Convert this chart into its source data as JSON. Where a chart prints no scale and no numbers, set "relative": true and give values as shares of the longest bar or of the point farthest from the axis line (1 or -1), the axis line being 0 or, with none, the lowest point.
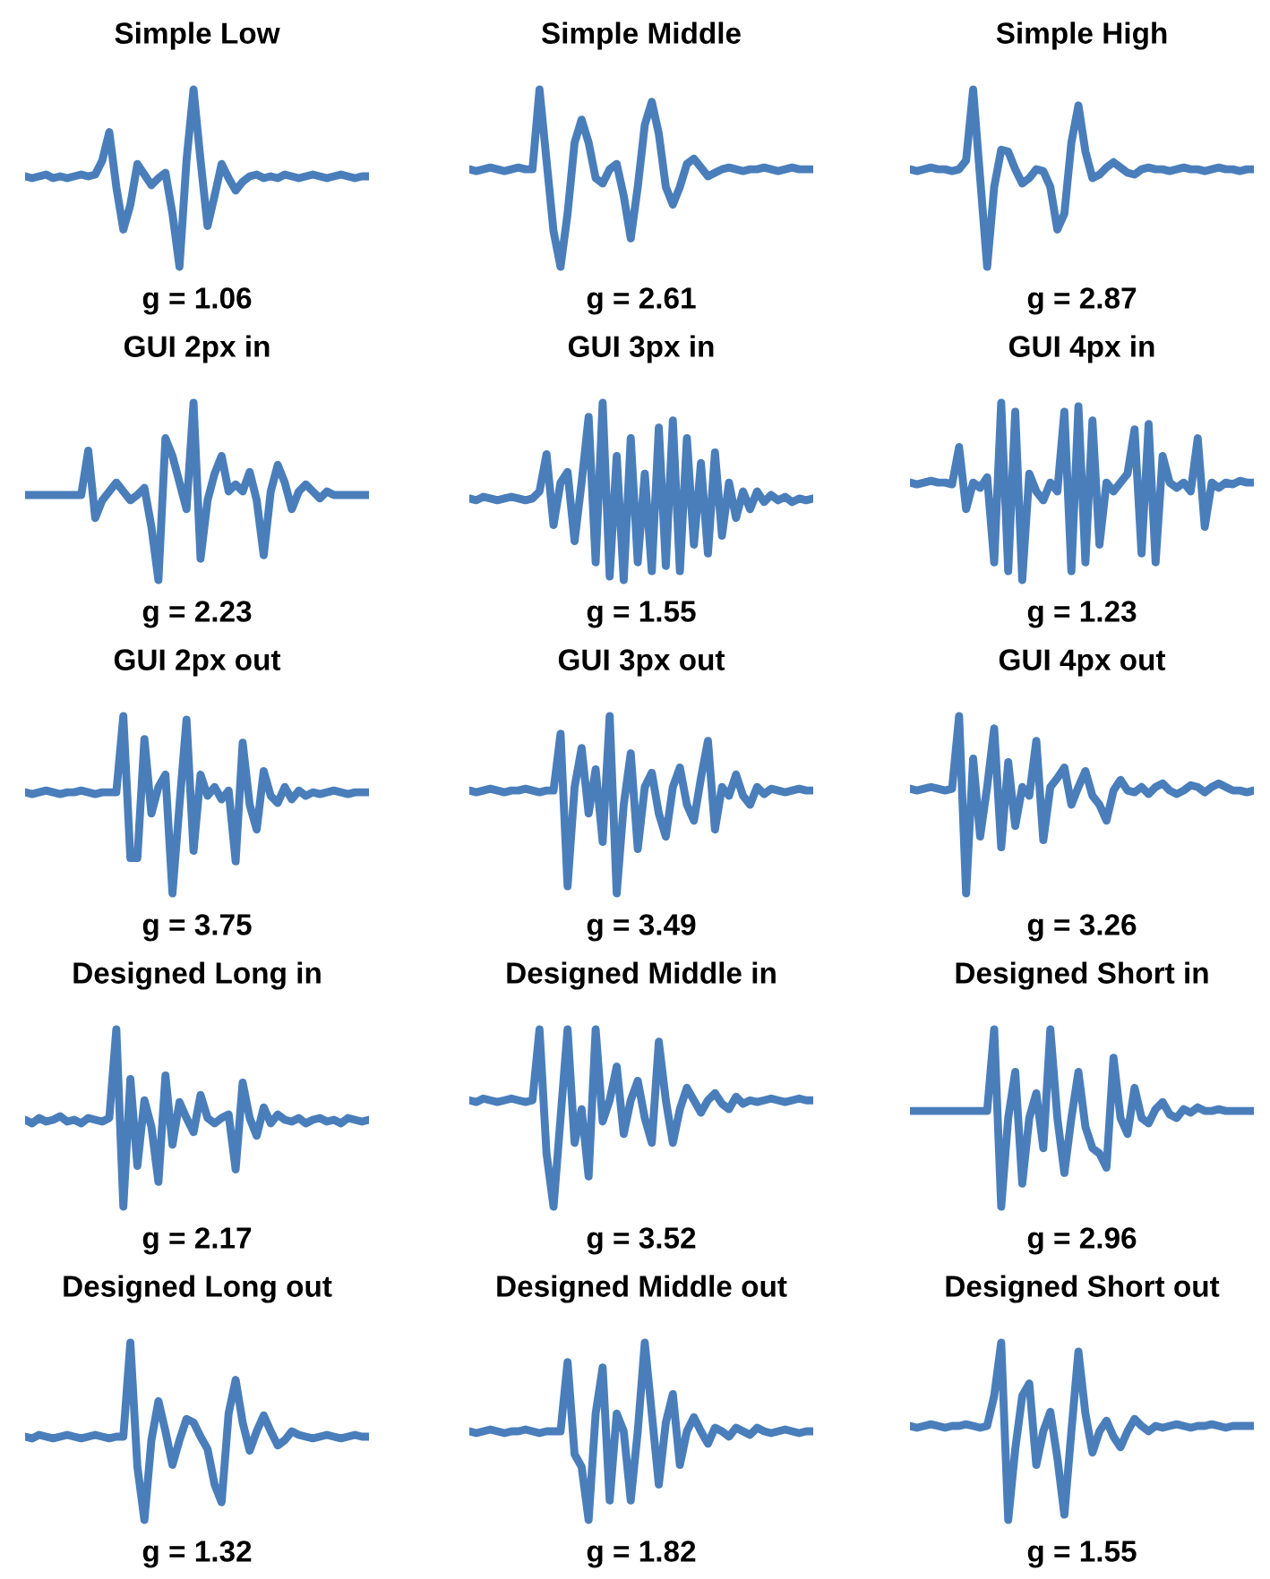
{
  "chart_data": [
    {
      "type": "line",
      "title": "Simple Low",
      "relative": true,
      "tick_labels": false,
      "annotations": [
        "g = 1.06"
      ],
      "categories": [
        null,
        null,
        null,
        null,
        null,
        null,
        null,
        null,
        null,
        null,
        null,
        null,
        null,
        null,
        null,
        null,
        null,
        null,
        null,
        null,
        null,
        null,
        null,
        null,
        null,
        null,
        null,
        null,
        null,
        null,
        null,
        null,
        null,
        null,
        null,
        null,
        null,
        null,
        null,
        null,
        null,
        null,
        null,
        null,
        null,
        null,
        null,
        null,
        null,
        null
      ],
      "series": [
        {
          "color": "#4a7ebb",
          "values": [
            0.51,
            0.5,
            0.51,
            0.52,
            0.5,
            0.51,
            0.5,
            0.51,
            0.52,
            0.51,
            0.52,
            0.6,
            0.76,
            0.45,
            0.21,
            0.35,
            0.58,
            0.52,
            0.46,
            0.5,
            0.53,
            0.3,
            0,
            0.6,
            1,
            0.6,
            0.23,
            0.4,
            0.58,
            0.5,
            0.43,
            0.48,
            0.51,
            0.52,
            0.5,
            0.51,
            0.5,
            0.52,
            0.51,
            0.5,
            0.51,
            0.52,
            0.51,
            0.5,
            0.51,
            0.52,
            0.51,
            0.5,
            0.51,
            0.51
          ]
        }
      ]
    },
    {
      "type": "line",
      "title": "Simple Middle",
      "relative": true,
      "tick_labels": false,
      "annotations": [
        "g = 2.61"
      ],
      "categories": [
        null,
        null,
        null,
        null,
        null,
        null,
        null,
        null,
        null,
        null,
        null,
        null,
        null,
        null,
        null,
        null,
        null,
        null,
        null,
        null,
        null,
        null,
        null,
        null,
        null,
        null,
        null,
        null,
        null,
        null,
        null,
        null,
        null,
        null,
        null,
        null,
        null,
        null,
        null,
        null,
        null,
        null,
        null,
        null,
        null,
        null,
        null,
        null,
        null,
        null
      ],
      "series": [
        {
          "color": "#4a7ebb",
          "values": [
            0.55,
            0.54,
            0.55,
            0.56,
            0.55,
            0.54,
            0.55,
            0.56,
            0.55,
            0.55,
            1,
            0.6,
            0.2,
            0,
            0.3,
            0.7,
            0.83,
            0.7,
            0.5,
            0.47,
            0.55,
            0.58,
            0.4,
            0.16,
            0.45,
            0.8,
            0.93,
            0.75,
            0.45,
            0.35,
            0.45,
            0.58,
            0.61,
            0.56,
            0.51,
            0.53,
            0.55,
            0.56,
            0.55,
            0.54,
            0.55,
            0.55,
            0.56,
            0.55,
            0.54,
            0.55,
            0.56,
            0.55,
            0.55,
            0.55
          ]
        }
      ]
    },
    {
      "type": "line",
      "title": "Simple High",
      "relative": true,
      "tick_labels": false,
      "annotations": [
        "g = 2.87"
      ],
      "categories": [
        null,
        null,
        null,
        null,
        null,
        null,
        null,
        null,
        null,
        null,
        null,
        null,
        null,
        null,
        null,
        null,
        null,
        null,
        null,
        null,
        null,
        null,
        null,
        null,
        null,
        null,
        null,
        null,
        null,
        null,
        null,
        null,
        null,
        null,
        null,
        null,
        null,
        null,
        null,
        null,
        null,
        null,
        null,
        null,
        null,
        null,
        null,
        null,
        null,
        null
      ],
      "series": [
        {
          "color": "#4a7ebb",
          "values": [
            0.55,
            0.54,
            0.55,
            0.56,
            0.55,
            0.55,
            0.54,
            0.55,
            0.6,
            1,
            0.5,
            0,
            0.45,
            0.66,
            0.65,
            0.55,
            0.47,
            0.5,
            0.55,
            0.54,
            0.45,
            0.21,
            0.3,
            0.7,
            0.91,
            0.65,
            0.5,
            0.52,
            0.56,
            0.59,
            0.56,
            0.53,
            0.52,
            0.55,
            0.56,
            0.55,
            0.55,
            0.54,
            0.55,
            0.56,
            0.55,
            0.55,
            0.54,
            0.55,
            0.56,
            0.55,
            0.55,
            0.54,
            0.55,
            0.55
          ]
        }
      ]
    },
    {
      "type": "line",
      "title": "GUI 2px in",
      "relative": true,
      "tick_labels": false,
      "annotations": [
        "g = 2.23"
      ],
      "categories": [
        null,
        null,
        null,
        null,
        null,
        null,
        null,
        null,
        null,
        null,
        null,
        null,
        null,
        null,
        null,
        null,
        null,
        null,
        null,
        null,
        null,
        null,
        null,
        null,
        null,
        null,
        null,
        null,
        null,
        null,
        null,
        null,
        null,
        null,
        null,
        null,
        null,
        null,
        null,
        null,
        null,
        null,
        null,
        null,
        null,
        null,
        null,
        null,
        null,
        null
      ],
      "series": [
        {
          "color": "#4a7ebb",
          "values": [
            0.48,
            0.48,
            0.48,
            0.48,
            0.48,
            0.48,
            0.48,
            0.48,
            0.48,
            0.73,
            0.35,
            0.45,
            0.5,
            0.55,
            0.5,
            0.45,
            0.48,
            0.52,
            0.3,
            0,
            0.8,
            0.7,
            0.55,
            0.4,
            1,
            0.12,
            0.45,
            0.6,
            0.7,
            0.5,
            0.54,
            0.5,
            0.61,
            0.45,
            0.14,
            0.5,
            0.65,
            0.55,
            0.4,
            0.5,
            0.54,
            0.5,
            0.46,
            0.5,
            0.48,
            0.48,
            0.48,
            0.48,
            0.48,
            0.48
          ]
        }
      ]
    },
    {
      "type": "line",
      "title": "GUI 3px in",
      "relative": true,
      "tick_labels": false,
      "annotations": [
        "g = 1.55"
      ],
      "categories": [
        null,
        null,
        null,
        null,
        null,
        null,
        null,
        null,
        null,
        null,
        null,
        null,
        null,
        null,
        null,
        null,
        null,
        null,
        null,
        null,
        null,
        null,
        null,
        null,
        null,
        null,
        null,
        null,
        null,
        null,
        null,
        null,
        null,
        null,
        null,
        null,
        null,
        null,
        null,
        null,
        null,
        null,
        null,
        null,
        null,
        null,
        null,
        null,
        null,
        null
      ],
      "series": [
        {
          "color": "#4a7ebb",
          "values": [
            0.46,
            0.45,
            0.47,
            0.46,
            0.45,
            0.46,
            0.47,
            0.46,
            0.45,
            0.46,
            0.5,
            0.71,
            0.31,
            0.55,
            0.61,
            0.22,
            0.55,
            0.92,
            0.1,
            1,
            0.02,
            0.7,
            0,
            0.8,
            0.1,
            0.6,
            0.05,
            0.86,
            0.08,
            0.9,
            0.05,
            0.8,
            0.2,
            0.66,
            0.15,
            0.72,
            0.25,
            0.55,
            0.35,
            0.5,
            0.4,
            0.5,
            0.44,
            0.48,
            0.45,
            0.47,
            0.44,
            0.46,
            0.45,
            0.46
          ]
        }
      ]
    },
    {
      "type": "line",
      "title": "GUI 4px in",
      "relative": true,
      "tick_labels": false,
      "annotations": [
        "g = 1.23"
      ],
      "categories": [
        null,
        null,
        null,
        null,
        null,
        null,
        null,
        null,
        null,
        null,
        null,
        null,
        null,
        null,
        null,
        null,
        null,
        null,
        null,
        null,
        null,
        null,
        null,
        null,
        null,
        null,
        null,
        null,
        null,
        null,
        null,
        null,
        null,
        null,
        null,
        null,
        null,
        null,
        null,
        null,
        null,
        null,
        null,
        null,
        null,
        null,
        null,
        null,
        null,
        null
      ],
      "series": [
        {
          "color": "#4a7ebb",
          "values": [
            0.55,
            0.54,
            0.55,
            0.56,
            0.55,
            0.55,
            0.54,
            0.75,
            0.4,
            0.55,
            0.52,
            0.58,
            0.1,
            1,
            0.05,
            0.95,
            0,
            0.6,
            0.5,
            0.45,
            0.55,
            0.5,
            0.95,
            0.05,
            0.98,
            0.1,
            0.9,
            0.2,
            0.55,
            0.5,
            0.55,
            0.6,
            0.85,
            0.15,
            0.88,
            0.1,
            0.7,
            0.55,
            0.52,
            0.55,
            0.5,
            0.8,
            0.3,
            0.55,
            0.52,
            0.55,
            0.54,
            0.56,
            0.55,
            0.55
          ]
        }
      ]
    },
    {
      "type": "line",
      "title": "GUI 2px out",
      "relative": true,
      "tick_labels": false,
      "annotations": [
        "g = 3.75"
      ],
      "categories": [
        null,
        null,
        null,
        null,
        null,
        null,
        null,
        null,
        null,
        null,
        null,
        null,
        null,
        null,
        null,
        null,
        null,
        null,
        null,
        null,
        null,
        null,
        null,
        null,
        null,
        null,
        null,
        null,
        null,
        null,
        null,
        null,
        null,
        null,
        null,
        null,
        null,
        null,
        null,
        null,
        null,
        null,
        null,
        null,
        null,
        null,
        null,
        null,
        null,
        null
      ],
      "series": [
        {
          "color": "#4a7ebb",
          "values": [
            0.57,
            0.56,
            0.57,
            0.58,
            0.57,
            0.56,
            0.57,
            0.57,
            0.58,
            0.57,
            0.56,
            0.57,
            0.57,
            0.57,
            1,
            0.2,
            0.2,
            0.87,
            0.45,
            0.6,
            0.67,
            0,
            0.5,
            0.98,
            0.24,
            0.67,
            0.55,
            0.6,
            0.53,
            0.58,
            0.18,
            0.85,
            0.5,
            0.36,
            0.69,
            0.55,
            0.51,
            0.6,
            0.53,
            0.58,
            0.55,
            0.57,
            0.56,
            0.57,
            0.58,
            0.57,
            0.56,
            0.57,
            0.57,
            0.57
          ]
        }
      ]
    },
    {
      "type": "line",
      "title": "GUI 3px out",
      "relative": true,
      "tick_labels": false,
      "annotations": [
        "g = 3.49"
      ],
      "categories": [
        null,
        null,
        null,
        null,
        null,
        null,
        null,
        null,
        null,
        null,
        null,
        null,
        null,
        null,
        null,
        null,
        null,
        null,
        null,
        null,
        null,
        null,
        null,
        null,
        null,
        null,
        null,
        null,
        null,
        null,
        null,
        null,
        null,
        null,
        null,
        null,
        null,
        null,
        null,
        null,
        null,
        null,
        null,
        null,
        null,
        null,
        null,
        null,
        null,
        null
      ],
      "series": [
        {
          "color": "#4a7ebb",
          "values": [
            0.58,
            0.57,
            0.58,
            0.59,
            0.58,
            0.57,
            0.58,
            0.58,
            0.59,
            0.58,
            0.57,
            0.58,
            0.58,
            0.9,
            0.04,
            0.6,
            0.82,
            0.45,
            0.7,
            0.29,
            1,
            0,
            0.5,
            0.79,
            0.25,
            0.6,
            0.68,
            0.45,
            0.32,
            0.6,
            0.71,
            0.5,
            0.41,
            0.65,
            0.86,
            0.36,
            0.6,
            0.55,
            0.67,
            0.55,
            0.5,
            0.6,
            0.56,
            0.59,
            0.58,
            0.57,
            0.58,
            0.59,
            0.58,
            0.58
          ]
        }
      ]
    },
    {
      "type": "line",
      "title": "GUI 4px out",
      "relative": true,
      "tick_labels": false,
      "annotations": [
        "g = 3.26"
      ],
      "categories": [
        null,
        null,
        null,
        null,
        null,
        null,
        null,
        null,
        null,
        null,
        null,
        null,
        null,
        null,
        null,
        null,
        null,
        null,
        null,
        null,
        null,
        null,
        null,
        null,
        null,
        null,
        null,
        null,
        null,
        null,
        null,
        null,
        null,
        null,
        null,
        null,
        null,
        null,
        null,
        null,
        null,
        null,
        null,
        null,
        null,
        null,
        null,
        null,
        null,
        null
      ],
      "series": [
        {
          "color": "#4a7ebb",
          "values": [
            0.59,
            0.58,
            0.59,
            0.6,
            0.59,
            0.58,
            0.59,
            1,
            0,
            0.76,
            0.32,
            0.6,
            0.93,
            0.26,
            0.74,
            0.38,
            0.6,
            0.55,
            0.86,
            0.3,
            0.6,
            0.65,
            0.71,
            0.5,
            0.6,
            0.69,
            0.55,
            0.5,
            0.41,
            0.58,
            0.64,
            0.58,
            0.57,
            0.6,
            0.56,
            0.6,
            0.62,
            0.58,
            0.56,
            0.58,
            0.61,
            0.6,
            0.57,
            0.6,
            0.62,
            0.6,
            0.58,
            0.58,
            0.57,
            0.58
          ]
        }
      ]
    },
    {
      "type": "line",
      "title": "Designed Long in",
      "relative": true,
      "tick_labels": false,
      "annotations": [
        "g = 2.17"
      ],
      "categories": [
        null,
        null,
        null,
        null,
        null,
        null,
        null,
        null,
        null,
        null,
        null,
        null,
        null,
        null,
        null,
        null,
        null,
        null,
        null,
        null,
        null,
        null,
        null,
        null,
        null,
        null,
        null,
        null,
        null,
        null,
        null,
        null,
        null,
        null,
        null,
        null,
        null,
        null,
        null,
        null,
        null,
        null,
        null,
        null,
        null,
        null,
        null,
        null,
        null,
        null
      ],
      "series": [
        {
          "color": "#4a7ebb",
          "values": [
            0.49,
            0.47,
            0.5,
            0.48,
            0.49,
            0.51,
            0.48,
            0.49,
            0.47,
            0.5,
            0.49,
            0.48,
            0.5,
            1,
            0,
            0.72,
            0.23,
            0.6,
            0.45,
            0.14,
            0.74,
            0.35,
            0.59,
            0.5,
            0.42,
            0.63,
            0.5,
            0.47,
            0.5,
            0.52,
            0.21,
            0.7,
            0.5,
            0.4,
            0.56,
            0.47,
            0.52,
            0.49,
            0.48,
            0.5,
            0.47,
            0.49,
            0.5,
            0.48,
            0.49,
            0.47,
            0.5,
            0.49,
            0.48,
            0.49
          ]
        }
      ]
    },
    {
      "type": "line",
      "title": "Designed Middle in",
      "relative": true,
      "tick_labels": false,
      "annotations": [
        "g = 3.52"
      ],
      "categories": [
        null,
        null,
        null,
        null,
        null,
        null,
        null,
        null,
        null,
        null,
        null,
        null,
        null,
        null,
        null,
        null,
        null,
        null,
        null,
        null,
        null,
        null,
        null,
        null,
        null,
        null,
        null,
        null,
        null,
        null,
        null,
        null,
        null,
        null,
        null,
        null,
        null,
        null,
        null,
        null,
        null,
        null,
        null,
        null,
        null,
        null,
        null,
        null,
        null,
        null
      ],
      "series": [
        {
          "color": "#4a7ebb",
          "values": [
            0.6,
            0.59,
            0.61,
            0.6,
            0.59,
            0.6,
            0.61,
            0.6,
            0.59,
            0.6,
            1,
            0.3,
            0,
            0.5,
            1,
            0.36,
            0.55,
            0.17,
            1,
            0.48,
            0.6,
            0.79,
            0.41,
            0.6,
            0.71,
            0.5,
            0.36,
            0.93,
            0.6,
            0.36,
            0.55,
            0.67,
            0.6,
            0.53,
            0.6,
            0.64,
            0.58,
            0.55,
            0.62,
            0.58,
            0.6,
            0.59,
            0.6,
            0.61,
            0.6,
            0.59,
            0.6,
            0.61,
            0.6,
            0.6
          ]
        }
      ]
    },
    {
      "type": "line",
      "title": "Designed Short in",
      "relative": true,
      "tick_labels": false,
      "annotations": [
        "g = 2.96"
      ],
      "categories": [
        null,
        null,
        null,
        null,
        null,
        null,
        null,
        null,
        null,
        null,
        null,
        null,
        null,
        null,
        null,
        null,
        null,
        null,
        null,
        null,
        null,
        null,
        null,
        null,
        null,
        null,
        null,
        null,
        null,
        null,
        null,
        null,
        null,
        null,
        null,
        null,
        null,
        null,
        null,
        null,
        null,
        null,
        null,
        null,
        null,
        null,
        null,
        null,
        null,
        null
      ],
      "series": [
        {
          "color": "#4a7ebb",
          "values": [
            0.54,
            0.54,
            0.54,
            0.54,
            0.54,
            0.54,
            0.54,
            0.54,
            0.54,
            0.54,
            0.54,
            0.54,
            1,
            0,
            0.5,
            0.76,
            0.13,
            0.5,
            0.64,
            0.33,
            1,
            0.5,
            0.19,
            0.5,
            0.76,
            0.45,
            0.33,
            0.3,
            0.22,
            0.84,
            0.5,
            0.41,
            0.67,
            0.5,
            0.47,
            0.55,
            0.59,
            0.52,
            0.5,
            0.55,
            0.53,
            0.56,
            0.54,
            0.54,
            0.55,
            0.54,
            0.54,
            0.54,
            0.54,
            0.54
          ]
        }
      ]
    },
    {
      "type": "line",
      "title": "Designed Long out",
      "relative": true,
      "tick_labels": false,
      "annotations": [
        "g = 1.32"
      ],
      "categories": [
        null,
        null,
        null,
        null,
        null,
        null,
        null,
        null,
        null,
        null,
        null,
        null,
        null,
        null,
        null,
        null,
        null,
        null,
        null,
        null,
        null,
        null,
        null,
        null,
        null,
        null,
        null,
        null,
        null,
        null,
        null,
        null,
        null,
        null,
        null,
        null,
        null,
        null,
        null,
        null,
        null,
        null,
        null,
        null,
        null,
        null,
        null,
        null,
        null,
        null
      ],
      "series": [
        {
          "color": "#4a7ebb",
          "values": [
            0.47,
            0.46,
            0.48,
            0.47,
            0.46,
            0.47,
            0.48,
            0.47,
            0.46,
            0.47,
            0.48,
            0.47,
            0.46,
            0.47,
            0.47,
            1,
            0.3,
            0,
            0.45,
            0.67,
            0.5,
            0.31,
            0.45,
            0.57,
            0.55,
            0.47,
            0.4,
            0.2,
            0.1,
            0.6,
            0.79,
            0.55,
            0.39,
            0.5,
            0.59,
            0.5,
            0.42,
            0.45,
            0.5,
            0.48,
            0.47,
            0.46,
            0.47,
            0.48,
            0.47,
            0.46,
            0.47,
            0.48,
            0.47,
            0.47
          ]
        }
      ]
    },
    {
      "type": "line",
      "title": "Designed Middle out",
      "relative": true,
      "tick_labels": false,
      "annotations": [
        "g = 1.82"
      ],
      "categories": [
        null,
        null,
        null,
        null,
        null,
        null,
        null,
        null,
        null,
        null,
        null,
        null,
        null,
        null,
        null,
        null,
        null,
        null,
        null,
        null,
        null,
        null,
        null,
        null,
        null,
        null,
        null,
        null,
        null,
        null,
        null,
        null,
        null,
        null,
        null,
        null,
        null,
        null,
        null,
        null,
        null,
        null,
        null,
        null,
        null,
        null,
        null,
        null,
        null,
        null
      ],
      "series": [
        {
          "color": "#4a7ebb",
          "values": [
            0.5,
            0.49,
            0.5,
            0.51,
            0.5,
            0.49,
            0.5,
            0.5,
            0.51,
            0.5,
            0.49,
            0.5,
            0.5,
            0.5,
            0.89,
            0.37,
            0.3,
            0,
            0.6,
            0.86,
            0.11,
            0.6,
            0.5,
            0.11,
            0.5,
            1,
            0.6,
            0.2,
            0.55,
            0.71,
            0.31,
            0.5,
            0.58,
            0.5,
            0.43,
            0.52,
            0.5,
            0.47,
            0.52,
            0.5,
            0.48,
            0.52,
            0.5,
            0.49,
            0.5,
            0.51,
            0.5,
            0.49,
            0.5,
            0.5
          ]
        }
      ]
    },
    {
      "type": "line",
      "title": "Designed Short out",
      "relative": true,
      "tick_labels": false,
      "annotations": [
        "g = 1.55"
      ],
      "categories": [
        null,
        null,
        null,
        null,
        null,
        null,
        null,
        null,
        null,
        null,
        null,
        null,
        null,
        null,
        null,
        null,
        null,
        null,
        null,
        null,
        null,
        null,
        null,
        null,
        null,
        null,
        null,
        null,
        null,
        null,
        null,
        null,
        null,
        null,
        null,
        null,
        null,
        null,
        null,
        null,
        null,
        null,
        null,
        null,
        null,
        null,
        null,
        null,
        null,
        null
      ],
      "series": [
        {
          "color": "#4a7ebb",
          "values": [
            0.53,
            0.52,
            0.53,
            0.54,
            0.53,
            0.52,
            0.53,
            0.53,
            0.54,
            0.53,
            0.52,
            0.53,
            0.7,
            1,
            0,
            0.4,
            0.7,
            0.77,
            0.31,
            0.5,
            0.61,
            0.35,
            0.03,
            0.5,
            0.95,
            0.6,
            0.38,
            0.5,
            0.56,
            0.47,
            0.41,
            0.5,
            0.57,
            0.53,
            0.5,
            0.53,
            0.52,
            0.53,
            0.54,
            0.53,
            0.52,
            0.53,
            0.53,
            0.54,
            0.53,
            0.52,
            0.53,
            0.53,
            0.53,
            0.53
          ]
        }
      ]
    }
  ]
}
